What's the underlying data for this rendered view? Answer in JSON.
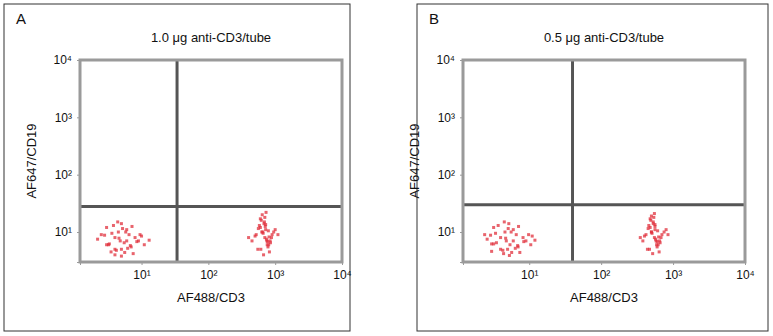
{
  "chart_data": [
    {
      "type": "scatter",
      "panel": "A",
      "title": "1.0 μg anti-CD3/tube",
      "x_label": "AF488/CD3",
      "y_label": "AF647/CD19",
      "log": true,
      "marker": "square",
      "xlim": [
        1.2,
        10000
      ],
      "ylim": [
        3,
        10000
      ],
      "xticks": [
        {
          "value": 10,
          "label": "10¹"
        },
        {
          "value": 100,
          "label": "10²"
        },
        {
          "value": 1000,
          "label": "10³"
        },
        {
          "value": 10000,
          "label": "10⁴"
        }
      ],
      "yticks": [
        {
          "value": 10,
          "label": "10¹"
        },
        {
          "value": 100,
          "label": "10²"
        },
        {
          "value": 1000,
          "label": "10³"
        },
        {
          "value": 10000,
          "label": "10⁴"
        }
      ],
      "x_gate": 34,
      "y_gate": 28,
      "series": [
        {
          "color": "#e0303c",
          "x": [
            3,
            4,
            5,
            6,
            2.5,
            3.5,
            4.5,
            5.5,
            7,
            8,
            3,
            4,
            6,
            9,
            11,
            2.2,
            5,
            6.5,
            4,
            3.2,
            7.5,
            10,
            4.8,
            5.8,
            3.8,
            6.2,
            8.5,
            2.8,
            4.2,
            5.2,
            13,
            3.6,
            6.8,
            4.4,
            5,
            7.2,
            9.5,
            3.3,
            5.6,
            4.6,
            700,
            650,
            800,
            600,
            750,
            900,
            550,
            680,
            720,
            850,
            500,
            620,
            780,
            950,
            450,
            700,
            660,
            820,
            580,
            740,
            1000,
            640,
            760,
            520,
            880,
            710,
            690,
            610,
            790,
            730,
            400,
            560,
            840,
            670,
            1100,
            600,
            770,
            720,
            630,
            810
          ],
          "values": [
            6,
            8,
            5,
            7,
            9,
            4.5,
            10,
            6.5,
            5.5,
            8,
            12,
            4,
            11,
            7,
            6,
            7.5,
            14,
            9,
            5,
            6,
            4.2,
            8.5,
            7,
            10,
            13,
            5.2,
            6.8,
            8.8,
            4.8,
            11.5,
            7.2,
            9.5,
            5.8,
            15,
            3.8,
            12.5,
            9,
            6.2,
            4.4,
            7.8,
            8,
            10,
            6,
            12,
            7,
            9,
            5,
            14,
            11,
            6.5,
            8.5,
            16,
            5.5,
            10,
            7,
            18,
            9.5,
            4.5,
            13,
            7.5,
            11,
            20,
            6,
            9,
            8,
            12.5,
            15,
            5,
            10.5,
            22,
            8,
            11.5,
            7,
            4,
            9,
            17,
            6.8,
            13.5,
            10,
            8.2
          ]
        }
      ]
    },
    {
      "type": "scatter",
      "panel": "B",
      "title": "0.5 μg anti-CD3/tube",
      "x_label": "AF488/CD3",
      "y_label": "AF647/CD19",
      "log": true,
      "marker": "square",
      "xlim": [
        1.2,
        10000
      ],
      "ylim": [
        3,
        10000
      ],
      "xticks": [
        {
          "value": 10,
          "label": "10¹"
        },
        {
          "value": 100,
          "label": "10²"
        },
        {
          "value": 1000,
          "label": "10³"
        },
        {
          "value": 10000,
          "label": "10⁴"
        }
      ],
      "yticks": [
        {
          "value": 10,
          "label": "10¹"
        },
        {
          "value": 100,
          "label": "10²"
        },
        {
          "value": 1000,
          "label": "10³"
        },
        {
          "value": 10000,
          "label": "10⁴"
        }
      ],
      "x_gate": 40,
      "y_gate": 30,
      "series": [
        {
          "color": "#e0303c",
          "x": [
            3.5,
            4,
            5,
            6,
            2.4,
            3,
            4.6,
            5.4,
            7,
            8.2,
            3.2,
            4.4,
            6,
            9,
            10.5,
            2.6,
            5.2,
            6.6,
            4,
            3,
            7.4,
            11,
            4.8,
            5.6,
            3.7,
            6.4,
            8.4,
            2.9,
            4.3,
            5.1,
            12,
            3.4,
            6.9,
            4.5,
            5.3,
            7.1,
            9.8,
            3.2,
            5.7,
            4.7,
            550,
            500,
            620,
            480,
            580,
            700,
            440,
            530,
            560,
            660,
            400,
            490,
            600,
            750,
            380,
            540,
            510,
            640,
            460,
            570,
            800,
            500,
            590,
            420,
            680,
            560,
            530,
            470,
            610,
            550,
            350,
            450,
            650,
            520,
            850,
            480,
            600,
            560,
            500,
            630
          ],
          "values": [
            6.5,
            8,
            5,
            7,
            9,
            4.6,
            10,
            6,
            5.5,
            8,
            12,
            4.2,
            11,
            7,
            6,
            7.5,
            14,
            9,
            5,
            6.2,
            4.4,
            8.5,
            7,
            10,
            13,
            5.2,
            6.8,
            8.8,
            4.8,
            11.5,
            7.2,
            9.5,
            5.8,
            15,
            3.9,
            12.5,
            9,
            6.2,
            4.4,
            7.8,
            8,
            10,
            6,
            12,
            7,
            9,
            5,
            14,
            11,
            6.5,
            8.5,
            16,
            5.5,
            10,
            7,
            18,
            9.5,
            4.5,
            13,
            7.5,
            11,
            19,
            6,
            9,
            8,
            12.5,
            15,
            5,
            10.5,
            21,
            8,
            11.5,
            7,
            4.2,
            9,
            17,
            6.8,
            13.5,
            10,
            8.2
          ]
        }
      ]
    }
  ]
}
